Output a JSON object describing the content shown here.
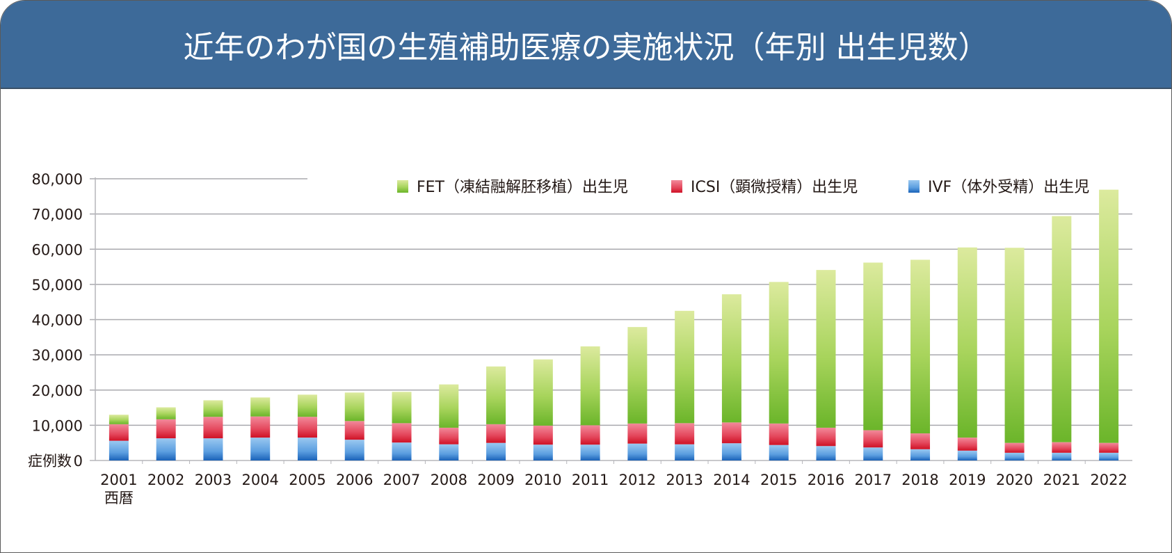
{
  "header": {
    "title": "近年のわが国の生殖補助医療の実施状況（年別 出生児数）"
  },
  "colors": {
    "header_bg": "#3d6a99",
    "fet": "#7cc034",
    "icsi": "#e23044",
    "ivf": "#2f7ccc"
  },
  "chart_data": {
    "type": "bar",
    "stacked": true,
    "title": "近年のわが国の生殖補助医療の実施状況（年別 出生児数）",
    "xlabel": "西暦",
    "ylabel": "症例数",
    "ylim": [
      0,
      80000
    ],
    "yticks": [
      0,
      10000,
      20000,
      30000,
      40000,
      50000,
      60000,
      70000,
      80000
    ],
    "ytick_labels": [
      "0",
      "10,000",
      "20,000",
      "30,000",
      "40,000",
      "50,000",
      "60,000",
      "70,000",
      "80,000"
    ],
    "grid": true,
    "legend_position": "top-right",
    "categories": [
      "2001",
      "2002",
      "2003",
      "2004",
      "2005",
      "2006",
      "2007",
      "2008",
      "2009",
      "2010",
      "2011",
      "2012",
      "2013",
      "2014",
      "2015",
      "2016",
      "2017",
      "2018",
      "2019",
      "2020",
      "2021",
      "2022"
    ],
    "series": [
      {
        "name": "IVF（体外受精）出生児",
        "key": "ivf",
        "values": [
          5600,
          6300,
          6300,
          6500,
          6500,
          5900,
          5100,
          4600,
          5000,
          4500,
          4500,
          4800,
          4600,
          4900,
          4400,
          4100,
          3700,
          3200,
          2800,
          2200,
          2200,
          2200
        ]
      },
      {
        "name": "ICSI（顕微授精）出生児",
        "key": "icsi",
        "values": [
          4700,
          5400,
          6100,
          6000,
          5900,
          5300,
          5500,
          4700,
          5300,
          5400,
          5500,
          5700,
          6000,
          5900,
          6100,
          5200,
          4900,
          4500,
          3700,
          2800,
          3000,
          2800
        ]
      },
      {
        "name": "FET（凍結融解胚移植）出生児",
        "key": "fet",
        "values": [
          2700,
          3400,
          4700,
          5400,
          6300,
          8100,
          8900,
          12300,
          16400,
          18800,
          22400,
          27400,
          31900,
          36400,
          40200,
          44800,
          47600,
          49300,
          54000,
          55400,
          64200,
          71900
        ]
      }
    ],
    "totals": [
      13000,
      15100,
      17100,
      17900,
      18700,
      19300,
      19500,
      21600,
      26700,
      28700,
      32400,
      37900,
      42500,
      47200,
      50700,
      54100,
      56200,
      57000,
      60500,
      60400,
      69400,
      76900
    ],
    "legend": [
      {
        "key": "fet",
        "label": "FET（凍結融解胚移植）出生児"
      },
      {
        "key": "icsi",
        "label": "ICSI（顕微授精）出生児"
      },
      {
        "key": "ivf",
        "label": "IVF（体外受精）出生児"
      }
    ]
  }
}
